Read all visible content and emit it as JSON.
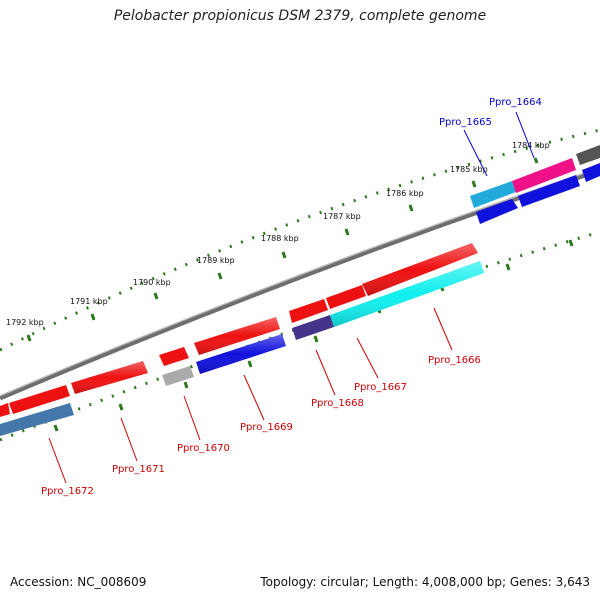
{
  "title": "Pelobacter propionicus DSM 2379, complete genome",
  "accession_text": "Accession: NC_008609",
  "summary_text": "Topology: circular; Length: 4,008,000 bp; Genes: 3,643",
  "colors": {
    "forward_label": "#cc0000",
    "reverse_label": "#0000cc",
    "ticks": "#2a7a1a",
    "backbone": "#888888"
  },
  "scale_ticks": [
    "1784 kbp",
    "1785 kbp",
    "1786 kbp",
    "1787 kbp",
    "1788 kbp",
    "1789 kbp",
    "1790 kbp",
    "1791 kbp",
    "1792 kbp"
  ],
  "gene_labels": [
    {
      "id": "Ppro_1664",
      "color": "#0000cc"
    },
    {
      "id": "Ppro_1665",
      "color": "#0000cc"
    },
    {
      "id": "Ppro_1666",
      "color": "#cc0000"
    },
    {
      "id": "Ppro_1667",
      "color": "#cc0000"
    },
    {
      "id": "Ppro_1668",
      "color": "#cc0000"
    },
    {
      "id": "Ppro_1669",
      "color": "#cc0000"
    },
    {
      "id": "Ppro_1670",
      "color": "#cc0000"
    },
    {
      "id": "Ppro_1671",
      "color": "#cc0000"
    },
    {
      "id": "Ppro_1672",
      "color": "#cc0000"
    }
  ],
  "features": [
    {
      "name": "feature-outer-1",
      "color": "#ee1111",
      "track": "outer"
    },
    {
      "name": "feature-outer-2",
      "color": "#ee1111",
      "track": "outer"
    },
    {
      "name": "feature-outer-3",
      "color": "#ee1111",
      "track": "outer"
    },
    {
      "name": "feature-outer-4",
      "color": "#ee1111",
      "track": "outer"
    },
    {
      "name": "feature-outer-5",
      "color": "#ee1111",
      "track": "outer"
    },
    {
      "name": "feature-outer-6",
      "color": "#ee1111",
      "track": "outer"
    },
    {
      "name": "feature-outer-7",
      "color": "#ee1111",
      "track": "outer"
    },
    {
      "name": "feature-outer-8",
      "color": "#ee1111",
      "track": "outer"
    },
    {
      "name": "feature-ppro1665",
      "color": "#22aadd",
      "track": "outer"
    },
    {
      "name": "feature-ppro1664",
      "color": "#ee1188",
      "track": "outer"
    },
    {
      "name": "feature-outer-gray",
      "color": "#555555",
      "track": "outer"
    },
    {
      "name": "feature-inner-steel",
      "color": "#4477aa",
      "track": "inner"
    },
    {
      "name": "feature-inner-gray",
      "color": "#aaaaaa",
      "track": "inner"
    },
    {
      "name": "feature-inner-blue-1",
      "color": "#1111dd",
      "track": "inner"
    },
    {
      "name": "feature-inner-slate",
      "color": "#443388",
      "track": "inner"
    },
    {
      "name": "feature-inner-cyan",
      "color": "#11eeee",
      "track": "inner"
    },
    {
      "name": "feature-inner-blue-2",
      "color": "#1111dd",
      "track": "inner"
    },
    {
      "name": "feature-inner-blue-3",
      "color": "#1111dd",
      "track": "inner"
    },
    {
      "name": "feature-inner-blue-4",
      "color": "#1111dd",
      "track": "inner"
    }
  ]
}
